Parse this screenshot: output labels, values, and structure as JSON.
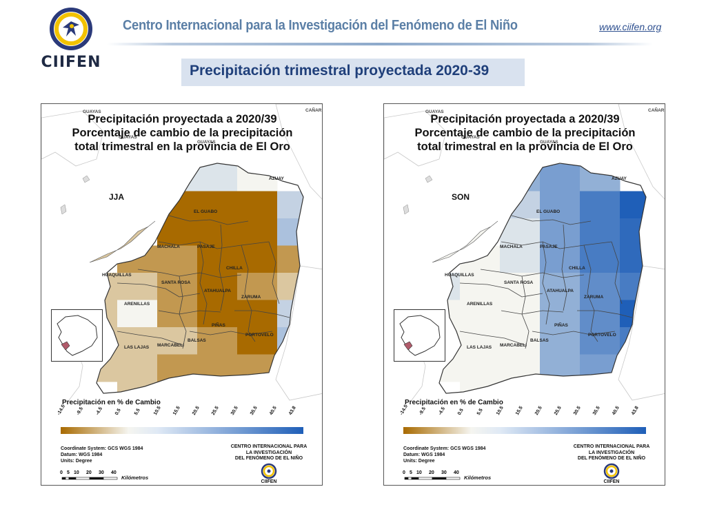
{
  "header": {
    "logo_text": "CIIFEN",
    "org_name": "Centro Internacional para la Investigación del Fenómeno de El Niño",
    "url": "www.ciifen.org",
    "slide_title": "Precipitación trimestral proyectada 2020-39"
  },
  "maps": [
    {
      "title_line1": "Precipitación proyectada a 2020/39",
      "title_line2": "Porcentaje de cambio de la precipitación",
      "title_line3": "total trimestral en la provincia de El Oro",
      "season": "JJA",
      "grid_percent_change": [
        [
          null,
          null,
          5.5,
          5.5,
          0.5,
          null
        ],
        [
          null,
          null,
          -14.5,
          -14.5,
          -14.5,
          10.5
        ],
        [
          null,
          null,
          -14.5,
          -14.5,
          -14.5,
          15.5
        ],
        [
          null,
          -9.5,
          -9.5,
          -14.5,
          -14.5,
          -9.5
        ],
        [
          -4.5,
          -4.5,
          -9.5,
          -14.5,
          -9.5,
          -4.5
        ],
        [
          -4.5,
          0.5,
          -9.5,
          -14.5,
          -14.5,
          10.5
        ],
        [
          -4.5,
          -4.5,
          -4.5,
          -9.5,
          -14.5,
          15.5
        ],
        [
          -4.5,
          -4.5,
          -9.5,
          -9.5,
          -9.5,
          20.5
        ],
        [
          null,
          -4.5,
          -4.5,
          -4.5,
          -4.5,
          null
        ]
      ]
    },
    {
      "title_line1": "Precipitación proyectada a 2020/39",
      "title_line2": "Porcentaje de cambio de la precipitación",
      "title_line3": "total trimestral en la provincia de El Oro",
      "season": "SON",
      "grid_percent_change": [
        [
          null,
          null,
          20.5,
          25.5,
          20.5,
          null
        ],
        [
          null,
          null,
          10.5,
          25.5,
          35.5,
          43.8
        ],
        [
          null,
          null,
          5.5,
          25.5,
          35.5,
          40.5
        ],
        [
          null,
          0.5,
          5.5,
          25.5,
          35.5,
          40.5
        ],
        [
          5.5,
          0.5,
          0.5,
          20.5,
          30.5,
          35.5
        ],
        [
          0.5,
          0.5,
          0.5,
          20.5,
          30.5,
          43.8
        ],
        [
          0.5,
          0.5,
          0.5,
          20.5,
          30.5,
          35.5
        ],
        [
          0.5,
          0.5,
          0.5,
          20.5,
          25.5,
          35.5
        ],
        [
          null,
          0.5,
          0.5,
          20.5,
          25.5,
          null
        ]
      ]
    }
  ],
  "places": {
    "el_guabo": "EL GUABO",
    "machala": "MACHALA",
    "pasaje": "PASAJE",
    "chilla": "CHILLA",
    "huaquillas": "HUAQUILLAS",
    "santa_rosa": "SANTA ROSA",
    "atahualpa": "ATAHUALPA",
    "zaruma": "ZARUMA",
    "arenillas": "ARENILLAS",
    "pinas": "PIÑAS",
    "portovelo": "PORTOVELO",
    "balsas": "BALSAS",
    "marcabeli": "MARCABELI",
    "las_lajas": "LAS LAJAS",
    "azuay": "AZUAY",
    "guayas": "GUAYAS",
    "canar": "CAÑAR"
  },
  "legend": {
    "title": "Precipitación en % de Cambio",
    "ticks": [
      "-14.5",
      "-9.5",
      "-4.5",
      "0.5",
      "5.5",
      "10.5",
      "15.5",
      "20.5",
      "25.5",
      "30.5",
      "35.5",
      "40.5",
      "43.8"
    ],
    "low_color": "#a86a00",
    "mid_color": "#f5f5f0",
    "high_color": "#1f5fb8"
  },
  "metadata": {
    "coordinate_system": "Coordinate System: GCS WGS 1984",
    "datum": "Datum: WGS 1984",
    "units": "Units: Degree",
    "credit_line1": "CENTRO INTERNACIONAL PARA",
    "credit_line2": "LA INVESTIGACIÓN",
    "credit_line3": "DEL FENÓMENO DE EL NIÑO",
    "credit_logo": "CIIFEN"
  },
  "scale_bar": {
    "ticks": [
      "0",
      "5",
      "10",
      "20",
      "30",
      "40"
    ],
    "unit": "Kilómetros"
  }
}
